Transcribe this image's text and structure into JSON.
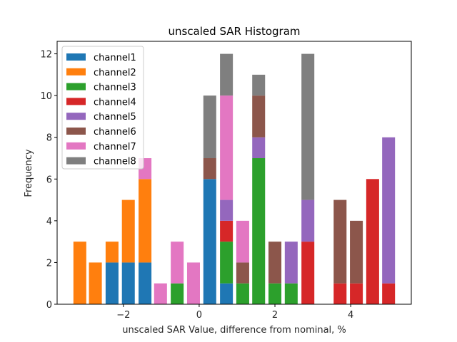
{
  "chart_data": {
    "type": "bar",
    "stacked": true,
    "title": "unscaled SAR Histogram",
    "xlabel": "unscaled SAR Value, difference from nominal, %",
    "ylabel": "Frequency",
    "xlim": [
      -3.75,
      5.6
    ],
    "ylim": [
      0,
      12.6
    ],
    "xticks": [
      -2,
      0,
      2,
      4
    ],
    "xtick_labels": [
      "−2",
      "0",
      "2",
      "4"
    ],
    "yticks": [
      0,
      2,
      4,
      6,
      8,
      10,
      12
    ],
    "ytick_labels": [
      "0",
      "2",
      "4",
      "6",
      "8",
      "10",
      "12"
    ],
    "bar_width": 0.34,
    "grid": false,
    "legend_position": "top-left",
    "x": [
      -3.15,
      -2.74,
      -2.3,
      -1.87,
      -1.43,
      -1.02,
      -0.58,
      -0.15,
      0.28,
      0.72,
      1.15,
      1.57,
      2.0,
      2.43,
      2.87,
      3.72,
      4.15,
      4.58,
      5.0
    ],
    "series": [
      {
        "name": "channel1",
        "color": "#1f77b4",
        "values": [
          0,
          0,
          2,
          2,
          2,
          0,
          0,
          0,
          6,
          1,
          0,
          0,
          0,
          0,
          0,
          0,
          0,
          0,
          0
        ]
      },
      {
        "name": "channel2",
        "color": "#ff7f0e",
        "values": [
          3,
          2,
          1,
          3,
          4,
          0,
          0,
          0,
          0,
          0,
          0,
          0,
          0,
          0,
          0,
          0,
          0,
          0,
          0
        ]
      },
      {
        "name": "channel3",
        "color": "#2ca02c",
        "values": [
          0,
          0,
          0,
          0,
          0,
          0,
          1,
          0,
          0,
          2,
          1,
          7,
          1,
          1,
          0,
          0,
          0,
          0,
          0
        ]
      },
      {
        "name": "channel4",
        "color": "#d62728",
        "values": [
          0,
          0,
          0,
          0,
          0,
          0,
          0,
          0,
          0,
          1,
          0,
          0,
          0,
          0,
          3,
          1,
          1,
          6,
          1
        ]
      },
      {
        "name": "channel5",
        "color": "#9467bd",
        "values": [
          0,
          0,
          0,
          0,
          0,
          0,
          0,
          0,
          0,
          1,
          0,
          1,
          0,
          2,
          2,
          0,
          0,
          0,
          7
        ]
      },
      {
        "name": "channel6",
        "color": "#8c564b",
        "values": [
          0,
          0,
          0,
          0,
          0,
          0,
          0,
          0,
          1,
          0,
          1,
          2,
          2,
          0,
          0,
          4,
          3,
          0,
          0
        ]
      },
      {
        "name": "channel7",
        "color": "#e377c2",
        "values": [
          0,
          0,
          0,
          0,
          1,
          1,
          2,
          2,
          0,
          5,
          2,
          0,
          0,
          0,
          0,
          0,
          0,
          0,
          0
        ]
      },
      {
        "name": "channel8",
        "color": "#7f7f7f",
        "values": [
          0,
          0,
          0,
          0,
          0,
          0,
          0,
          0,
          3,
          2,
          0,
          1,
          0,
          0,
          7,
          0,
          0,
          0,
          0
        ]
      }
    ]
  }
}
